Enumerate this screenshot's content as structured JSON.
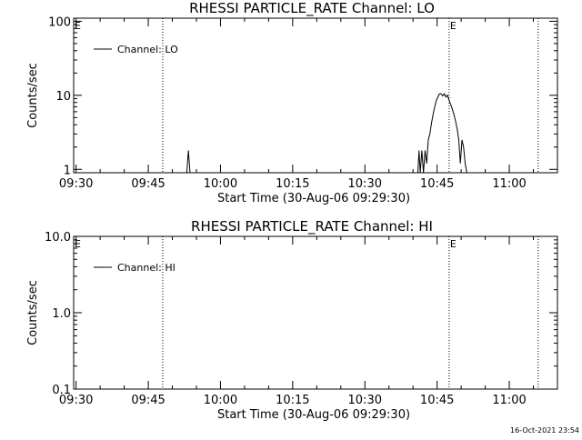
{
  "footer_timestamp": "16-Oct-2021 23:54",
  "chart_data": [
    {
      "type": "line",
      "title": "RHESSI PARTICLE_RATE Channel: LO",
      "xlabel": "Start Time (30-Aug-06 09:29:30)",
      "ylabel": "Counts/sec",
      "yscale": "log",
      "ylim": [
        0.9,
        110
      ],
      "xlim": [
        "09:29:30",
        "11:10:00"
      ],
      "x_ticks": [
        "09:30",
        "09:45",
        "10:00",
        "10:15",
        "10:30",
        "10:45",
        "11:00"
      ],
      "y_ticks": [
        "1",
        "10",
        "100"
      ],
      "legend": {
        "placement": "top-left",
        "entries": [
          "Channel: LO"
        ]
      },
      "markers": [
        {
          "time": "09:29:30",
          "label": "E",
          "line": false
        },
        {
          "time": "09:48:00",
          "label": "",
          "line": true
        },
        {
          "time": "10:47:30",
          "label": "E",
          "line": true
        },
        {
          "time": "11:06:00",
          "label": "",
          "line": true
        }
      ],
      "series": [
        {
          "name": "Channel: LO",
          "points": [
            [
              "09:53:00",
              0.9
            ],
            [
              "09:53:20",
              1.8
            ],
            [
              "09:53:40",
              0.9
            ],
            [
              "10:41:00",
              0.9
            ],
            [
              "10:41:15",
              1.8
            ],
            [
              "10:41:30",
              0.9
            ],
            [
              "10:41:50",
              1.8
            ],
            [
              "10:42:10",
              0.9
            ],
            [
              "10:42:30",
              1.8
            ],
            [
              "10:42:50",
              1.2
            ],
            [
              "10:43:10",
              2.5
            ],
            [
              "10:43:30",
              3.0
            ],
            [
              "10:43:50",
              4.2
            ],
            [
              "10:44:10",
              5.5
            ],
            [
              "10:44:30",
              7.0
            ],
            [
              "10:44:50",
              8.5
            ],
            [
              "10:45:10",
              9.5
            ],
            [
              "10:45:30",
              10.5
            ],
            [
              "10:45:50",
              10.5
            ],
            [
              "10:46:10",
              9.8
            ],
            [
              "10:46:30",
              10.5
            ],
            [
              "10:46:50",
              9.5
            ],
            [
              "10:47:10",
              10.0
            ],
            [
              "10:47:30",
              8.5
            ],
            [
              "10:47:50",
              7.5
            ],
            [
              "10:48:10",
              6.5
            ],
            [
              "10:48:30",
              5.5
            ],
            [
              "10:48:50",
              4.5
            ],
            [
              "10:49:10",
              3.5
            ],
            [
              "10:49:30",
              2.5
            ],
            [
              "10:49:50",
              1.2
            ],
            [
              "10:50:10",
              2.5
            ],
            [
              "10:50:30",
              2.0
            ],
            [
              "10:50:50",
              1.2
            ],
            [
              "10:51:10",
              0.9
            ]
          ]
        }
      ]
    },
    {
      "type": "line",
      "title": "RHESSI PARTICLE_RATE Channel: HI",
      "xlabel": "Start Time (30-Aug-06 09:29:30)",
      "ylabel": "Counts/sec",
      "yscale": "log",
      "ylim": [
        0.1,
        10
      ],
      "xlim": [
        "09:29:30",
        "11:10:00"
      ],
      "x_ticks": [
        "09:30",
        "09:45",
        "10:00",
        "10:15",
        "10:30",
        "10:45",
        "11:00"
      ],
      "y_ticks": [
        "0.1",
        "1.0",
        "10.0"
      ],
      "legend": {
        "placement": "top-left",
        "entries": [
          "Channel: HI"
        ]
      },
      "markers": [
        {
          "time": "09:29:30",
          "label": "E",
          "line": false
        },
        {
          "time": "09:48:00",
          "label": "",
          "line": true
        },
        {
          "time": "10:47:30",
          "label": "E",
          "line": true
        },
        {
          "time": "11:06:00",
          "label": "",
          "line": true
        }
      ],
      "series": [
        {
          "name": "Channel: HI",
          "points": []
        }
      ]
    }
  ]
}
